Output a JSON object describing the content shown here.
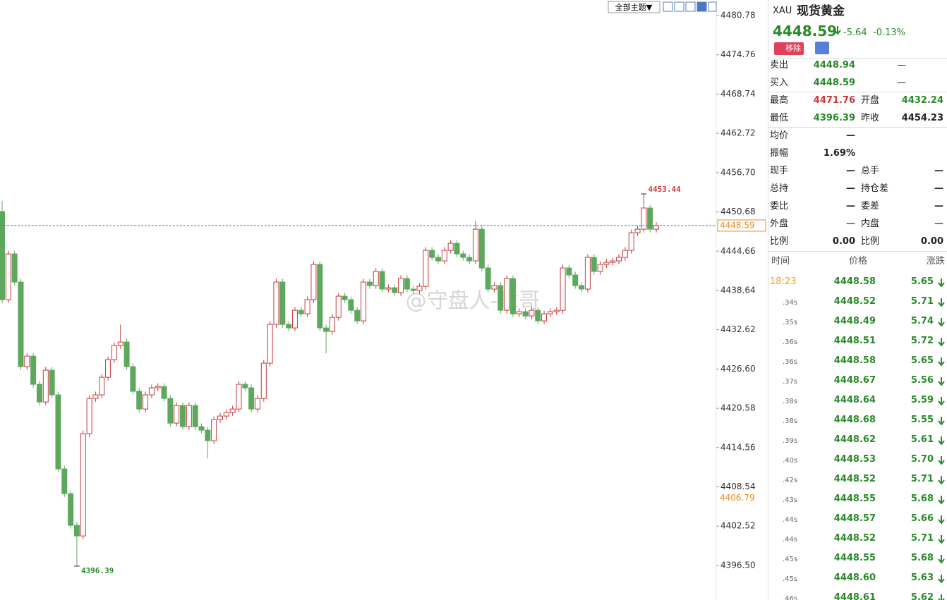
{
  "chart_data": {
    "type": "candlestick",
    "ylim": [
      4391.2,
      4483.16
    ],
    "yticks": [
      4480.78,
      4474.76,
      4468.74,
      4462.72,
      {
        "value": 4456.7,
        "label": "4456.70"
      },
      4450.68,
      4444.66,
      4438.64,
      4432.62,
      {
        "value": 4426.6,
        "label": "4426.60"
      },
      4420.58,
      4414.56,
      4408.54,
      4402.52,
      {
        "value": 4396.5,
        "label": "4396.50"
      }
    ],
    "up_color": "#c8393b",
    "down_color": "#5ea85e",
    "last_price": 4448.59,
    "marker_price": 4406.79,
    "high_annotation": 4453.44,
    "low_annotation": 4396.39,
    "open": [
      4450.74,
      4437.23,
      4444.25,
      4439.93,
      4426.96,
      4428.58,
      4424.26,
      4421.55,
      4426.42,
      4422.64,
      4411.29,
      4407.5,
      4402.64,
      4401.02,
      4416.69,
      4422.09,
      4422.64,
      4425.34,
      4428.04,
      4430.2,
      4430.74,
      4426.96,
      4423.18,
      4420.47,
      4422.64,
      4423.72,
      4423.93,
      4422.09,
      4418.31,
      4421.01,
      4417.77,
      4421.01,
      4417.77,
      4417.23,
      4415.61,
      4418.85,
      4419.39,
      4419.93,
      4420.47,
      4424.26,
      4423.72,
      4420.47,
      4422.09,
      4427.5,
      4433.44,
      4439.93,
      4433.44,
      4432.9,
      4435.6,
      4435.06,
      4437.23,
      4442.63,
      4432.9,
      4432.36,
      4434.52,
      4437.77,
      4437.23,
      4435.6,
      4433.98,
      4439.93,
      4439.39,
      4441.55,
      4438.85,
      4439.06,
      4438.31,
      4440.47,
      4438.85,
      4438.63,
      4439.28,
      4444.79,
      4443.71,
      4443.17,
      4444.79,
      4445.87,
      4444.25,
      4443.71,
      4443.17,
      4448.03,
      4442.09,
      4438.85,
      4439.39,
      4435.6,
      4440.47,
      4435.06,
      4435.39,
      4434.74,
      4435.6,
      4433.98,
      4435.06,
      4435.39,
      4435.6,
      4442.09,
      4441.01,
      4439.39,
      4438.85,
      4443.71,
      4441.55,
      4442.63,
      4442.95,
      4443.17,
      4443.71,
      4444.79,
      4447.49,
      4448.03,
      4451.28,
      4448.03
    ],
    "high": [
      4452.4,
      4444.75,
      4444.75,
      4440.43,
      4429.08,
      4429.08,
      4424.76,
      4426.92,
      4426.92,
      4423.14,
      4411.79,
      4408.0,
      4403.14,
      4417.19,
      4422.59,
      4423.14,
      4425.84,
      4428.54,
      4430.7,
      4433.4,
      4431.24,
      4427.46,
      4423.68,
      4423.14,
      4424.22,
      4424.43,
      4424.43,
      4422.59,
      4421.51,
      4421.51,
      4421.51,
      4421.51,
      4418.27,
      4417.73,
      4419.35,
      4419.89,
      4420.43,
      4420.97,
      4424.76,
      4424.76,
      4424.22,
      4422.59,
      4428.0,
      4433.94,
      4440.43,
      4440.43,
      4433.94,
      4436.1,
      4436.1,
      4437.73,
      4443.13,
      4443.13,
      4433.4,
      4435.02,
      4438.27,
      4438.27,
      4437.73,
      4436.1,
      4440.43,
      4440.43,
      4442.05,
      4442.05,
      4439.56,
      4439.56,
      4440.97,
      4440.97,
      4439.35,
      4439.78,
      4445.29,
      4445.29,
      4444.21,
      4445.29,
      4446.37,
      4446.37,
      4444.75,
      4444.21,
      4449.3,
      4448.53,
      4442.59,
      4439.89,
      4439.89,
      4440.97,
      4440.97,
      4435.89,
      4435.89,
      4436.1,
      4436.1,
      4435.56,
      4435.89,
      4436.1,
      4442.59,
      4442.59,
      4441.51,
      4439.89,
      4444.21,
      4444.21,
      4443.13,
      4443.45,
      4443.67,
      4444.21,
      4445.29,
      4447.99,
      4448.53,
      4453.44,
      4451.78,
      4449.09
    ],
    "low": [
      4436.73,
      4436.73,
      4439.43,
      4426.46,
      4426.46,
      4423.76,
      4421.05,
      4421.05,
      4422.14,
      4410.79,
      4407.0,
      4402.14,
      4396.39,
      4400.52,
      4416.19,
      4421.59,
      4422.14,
      4424.84,
      4427.54,
      4429.7,
      4426.46,
      4422.68,
      4419.97,
      4419.97,
      4422.14,
      4423.22,
      4421.59,
      4417.81,
      4417.81,
      4417.27,
      4417.27,
      4417.27,
      4416.73,
      4412.9,
      4415.11,
      4418.35,
      4418.89,
      4419.43,
      4419.97,
      4423.22,
      4419.97,
      4419.97,
      4421.59,
      4427.0,
      4432.94,
      4432.94,
      4432.4,
      4432.4,
      4434.56,
      4434.56,
      4436.73,
      4432.4,
      4429.0,
      4431.86,
      4434.02,
      4436.73,
      4435.1,
      4433.48,
      4433.48,
      4438.89,
      4438.89,
      4438.35,
      4438.35,
      4437.81,
      4437.81,
      4438.35,
      4438.13,
      4438.13,
      4438.78,
      4443.21,
      4442.67,
      4442.67,
      4444.29,
      4443.75,
      4443.21,
      4442.67,
      4442.67,
      4441.59,
      4438.35,
      4438.35,
      4435.1,
      4435.1,
      4434.56,
      4434.56,
      4434.24,
      4434.24,
      4433.48,
      4433.48,
      4434.56,
      4434.89,
      4435.1,
      4440.51,
      4438.89,
      4438.35,
      4438.35,
      4441.05,
      4441.05,
      4442.13,
      4442.45,
      4442.67,
      4443.21,
      4444.29,
      4446.99,
      4447.53,
      4447.53,
      4447.53
    ],
    "close": [
      4437.23,
      4444.25,
      4439.93,
      4426.96,
      4428.58,
      4424.26,
      4421.55,
      4426.42,
      4422.64,
      4411.29,
      4407.5,
      4402.64,
      4401.02,
      4416.69,
      4422.09,
      4422.64,
      4425.34,
      4428.04,
      4430.2,
      4430.74,
      4426.96,
      4423.18,
      4420.47,
      4422.64,
      4423.72,
      4423.93,
      4422.09,
      4418.31,
      4421.01,
      4417.77,
      4421.01,
      4417.77,
      4417.23,
      4415.61,
      4418.85,
      4419.39,
      4419.93,
      4420.47,
      4424.26,
      4423.72,
      4420.47,
      4422.09,
      4427.5,
      4433.44,
      4439.93,
      4433.44,
      4432.9,
      4435.6,
      4435.06,
      4437.23,
      4442.63,
      4432.9,
      4432.36,
      4434.52,
      4437.77,
      4437.23,
      4435.6,
      4433.98,
      4439.93,
      4439.39,
      4441.55,
      4438.85,
      4439.06,
      4438.31,
      4440.47,
      4438.85,
      4438.63,
      4439.28,
      4444.79,
      4443.71,
      4443.17,
      4444.79,
      4445.87,
      4444.25,
      4443.71,
      4443.17,
      4448.03,
      4442.09,
      4438.85,
      4439.39,
      4435.6,
      4440.47,
      4435.06,
      4435.39,
      4434.74,
      4435.6,
      4433.98,
      4435.06,
      4435.39,
      4435.6,
      4442.09,
      4441.01,
      4439.39,
      4438.85,
      4443.71,
      4441.55,
      4442.63,
      4442.95,
      4443.17,
      4443.71,
      4444.79,
      4447.49,
      4448.03,
      4451.28,
      4448.03,
      4448.59
    ]
  },
  "toolbar": {
    "theme_menu": "全部主题▼"
  },
  "watermark": "@守盘人-章哥",
  "quote": {
    "symbol": "XAU",
    "name": "现货黄金",
    "price": "4448.59",
    "change": "-5.64",
    "change_pct": "-0.13%",
    "remove_button": "移除",
    "rows": [
      [
        "卖出",
        {
          "text": "4448.94",
          "color": "#2a8a2a"
        },
        "—"
      ],
      [
        "买入",
        {
          "text": "4448.59",
          "color": "#2a8a2a"
        },
        "—"
      ],
      [
        "最高",
        {
          "text": "4471.76",
          "color": "#c8393b"
        },
        "开盘",
        {
          "text": "4432.24",
          "color": "#2a8a2a"
        }
      ],
      [
        "最低",
        {
          "text": "4396.39",
          "color": "#2a8a2a"
        },
        "昨收",
        "4454.23"
      ],
      [
        "均价",
        "—"
      ],
      [
        "振幅",
        "1.69%"
      ],
      [
        "现手",
        "—",
        "总手",
        "—"
      ],
      [
        "总持",
        "—",
        "持仓差",
        "—"
      ],
      [
        "委比",
        "—",
        "委差",
        "—"
      ],
      [
        "外盘",
        {
          "text": "—",
          "color": "#c8393b"
        },
        "内盘",
        {
          "text": "—",
          "color": "#2a8a2a"
        }
      ],
      [
        "比例",
        "0.00",
        "比例",
        "0.00"
      ]
    ]
  },
  "ticks": {
    "headers": [
      "时间",
      "价格",
      "涨跌"
    ],
    "rows": [
      [
        "18:23",
        "4448.58",
        "5.65"
      ],
      [
        ".34s",
        "4448.52",
        "5.71"
      ],
      [
        ".35s",
        "4448.49",
        "5.74"
      ],
      [
        ".36s",
        "4448.51",
        "5.72"
      ],
      [
        ".36s",
        "4448.58",
        "5.65"
      ],
      [
        ".37s",
        "4448.67",
        "5.56"
      ],
      [
        ".38s",
        "4448.64",
        "5.59"
      ],
      [
        ".38s",
        "4448.68",
        "5.55"
      ],
      [
        ".39s",
        "4448.62",
        "5.61"
      ],
      [
        ".40s",
        "4448.53",
        "5.70"
      ],
      [
        ".42s",
        "4448.52",
        "5.71"
      ],
      [
        ".43s",
        "4448.55",
        "5.68"
      ],
      [
        ".44s",
        "4448.57",
        "5.66"
      ],
      [
        ".44s",
        "4448.52",
        "5.71"
      ],
      [
        ".45s",
        "4448.55",
        "5.68"
      ],
      [
        ".45s",
        "4448.60",
        "5.63"
      ],
      [
        ".46s",
        "4448.61",
        "5.62"
      ]
    ]
  }
}
